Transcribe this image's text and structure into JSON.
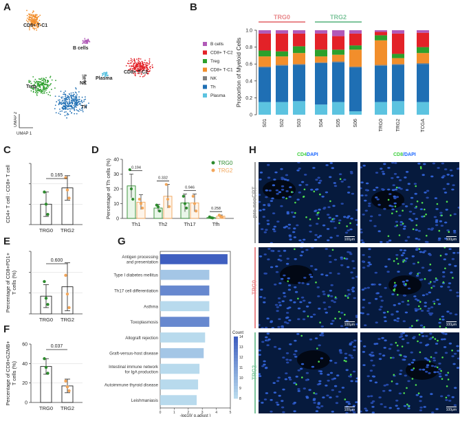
{
  "panels": {
    "A": "A",
    "B": "B",
    "C": "C",
    "D": "D",
    "E": "E",
    "F": "F",
    "G": "G",
    "H": "H"
  },
  "colors": {
    "cd8_c1": "#f28e2b",
    "bcells": "#b15ab8",
    "cd8_c2": "#e32228",
    "treg": "#2ca02c",
    "nk": "#7f7f7f",
    "th": "#1f6fb4",
    "plasma": "#5cc3e0",
    "trg0": "#e8878a",
    "trg2": "#7cc49b",
    "trg0_dot": "#2e8b2e",
    "trg2_dot": "#f2a65a",
    "pre": "#999999"
  },
  "umap": {
    "clusters": [
      "CD8+ T-C1",
      "B cells",
      "CD8+ T-C2",
      "Treg",
      "NK",
      "Plasma",
      "Th"
    ],
    "xlabel": "UMAP 1",
    "ylabel": "UMAP 2"
  },
  "chart_data": [
    {
      "id": "B",
      "type": "bar",
      "stacked": true,
      "title": "",
      "ylabel": "Proportion of Myeloid Cells",
      "ylim": [
        0,
        1.0
      ],
      "yticks": [
        "0",
        "0.2",
        "0.4",
        "0.6",
        "0.8",
        "1.0"
      ],
      "group_labels": [
        "TRG0",
        "TRG2"
      ],
      "categories": [
        "S01",
        "S02",
        "S03",
        "S04",
        "S05",
        "S06",
        "TRG0",
        "TRG2",
        "TCGA"
      ],
      "legend": [
        "B cells",
        "CD8+ T-C2",
        "Treg",
        "CD8+ T-C1",
        "NK",
        "Th",
        "Plasma"
      ],
      "series": [
        {
          "name": "Plasma",
          "values": [
            0.15,
            0.15,
            0.16,
            0.12,
            0.15,
            0.04,
            0.15,
            0.16,
            0.15
          ]
        },
        {
          "name": "Th",
          "values": [
            0.41,
            0.43,
            0.43,
            0.49,
            0.47,
            0.52,
            0.43,
            0.43,
            0.45
          ]
        },
        {
          "name": "NK",
          "values": [
            0.01,
            0.01,
            0.01,
            0.01,
            0.01,
            0.01,
            0.01,
            0.01,
            0.01
          ]
        },
        {
          "name": "CD8+ T-C1",
          "values": [
            0.12,
            0.1,
            0.13,
            0.07,
            0.08,
            0.2,
            0.29,
            0.07,
            0.12
          ]
        },
        {
          "name": "Treg",
          "values": [
            0.07,
            0.06,
            0.08,
            0.08,
            0.06,
            0.05,
            0.06,
            0.05,
            0.07
          ]
        },
        {
          "name": "CD8+ T-C2",
          "values": [
            0.2,
            0.21,
            0.15,
            0.19,
            0.16,
            0.14,
            0.04,
            0.24,
            0.17
          ]
        },
        {
          "name": "B cells",
          "values": [
            0.04,
            0.04,
            0.04,
            0.04,
            0.07,
            0.04,
            0.02,
            0.04,
            0.03
          ]
        }
      ]
    },
    {
      "id": "C",
      "type": "bar",
      "ylabel": "CD4+ T cell : CD8+ T cell",
      "categories": [
        "TRG0",
        "TRG2"
      ],
      "values": [
        2.0,
        3.6
      ],
      "errors": [
        1.2,
        1.2
      ],
      "points": [
        [
          3.2,
          2.0,
          1.0
        ],
        [
          4.6,
          3.4,
          2.6
        ]
      ],
      "ylim": [
        0,
        6
      ],
      "pvalue": "0.165"
    },
    {
      "id": "D",
      "type": "bar",
      "ylabel": "Percentage of Th cells (%)",
      "categories": [
        "Th1",
        "Th2",
        "Th17",
        "Tfh"
      ],
      "ylim": [
        0,
        40
      ],
      "yticks": [
        "0",
        "10",
        "20",
        "30",
        "40"
      ],
      "legend": [
        "TRG0",
        "TRG2"
      ],
      "series": [
        {
          "name": "TRG0",
          "values": [
            22,
            7,
            10.5,
            0.6
          ],
          "errors": [
            8,
            2.5,
            6,
            0.4
          ],
          "points": [
            [
              33,
              20,
              13
            ],
            [
              9,
              8,
              5
            ],
            [
              15,
              10,
              7
            ],
            [
              1,
              0.5,
              0.3
            ]
          ]
        },
        {
          "name": "TRG2",
          "values": [
            11,
            15,
            10.5,
            1.5
          ],
          "errors": [
            5,
            8,
            6,
            0.8
          ],
          "points": [
            [
              13,
              10,
              7
            ],
            [
              23,
              13,
              8
            ],
            [
              15,
              10,
              5
            ],
            [
              2.2,
              1.3,
              0.8
            ]
          ]
        }
      ],
      "pvalues": [
        "0.194",
        "0.332",
        "0.946",
        "0.258"
      ]
    },
    {
      "id": "E",
      "type": "bar",
      "ylabel": "Percentage of CD8+PD1+ T cells (%)",
      "categories": [
        "TRG0",
        "TRG2"
      ],
      "values": [
        1.7,
        2.6
      ],
      "errors": [
        1.1,
        2.3
      ],
      "points": [
        [
          3.1,
          1.5,
          0.9
        ],
        [
          3.7,
          1.9,
          0.6
        ]
      ],
      "ylim": [
        0,
        6
      ],
      "pvalue": "0.600"
    },
    {
      "id": "F",
      "type": "bar",
      "ylabel": "Percentage of CD8+GZMB+ T cells (%)",
      "categories": [
        "TRG0",
        "TRG2"
      ],
      "values": [
        37,
        17
      ],
      "errors": [
        8,
        7
      ],
      "points": [
        [
          45,
          36,
          30
        ],
        [
          22,
          16,
          12
        ]
      ],
      "ylim": [
        0,
        60
      ],
      "yticks": [
        "0",
        "20",
        "40",
        "60"
      ],
      "pvalue": "0.037"
    },
    {
      "id": "G",
      "type": "bar",
      "orientation": "horizontal",
      "xlabel": "-log10( p.adjust )",
      "xticks": [
        "0",
        "1",
        "2",
        "3",
        "4",
        "5"
      ],
      "xlim": [
        0,
        5
      ],
      "categories": [
        "Antigen processing and presentation",
        "Type I diabetes mellitus",
        "Th17 cell differentiation",
        "Asthma",
        "Toxoplasmosis",
        "Allograft rejection",
        "Graft-versus-host disease",
        "Intestinal immune network for IgA production",
        "Autoimmune thyroid disease",
        "Leishmaniasis"
      ],
      "values": [
        4.8,
        3.5,
        3.5,
        3.5,
        3.5,
        3.2,
        3.1,
        2.8,
        2.7,
        2.6
      ],
      "counts": [
        14,
        9,
        12,
        8,
        12,
        8,
        9,
        8,
        8,
        8
      ],
      "legend_title": "Count",
      "legend_ticks": [
        "14",
        "13",
        "12",
        "11",
        "10",
        "9",
        "8"
      ]
    }
  ],
  "panel_H": {
    "col_headers": [
      {
        "marker": "CD4",
        "rest": "DAPI"
      },
      {
        "marker": "CD8",
        "rest": "/DAPI"
      }
    ],
    "rows": [
      "pre-neoCRT",
      "TRG0",
      "TRG2"
    ],
    "scale": "100μm"
  }
}
